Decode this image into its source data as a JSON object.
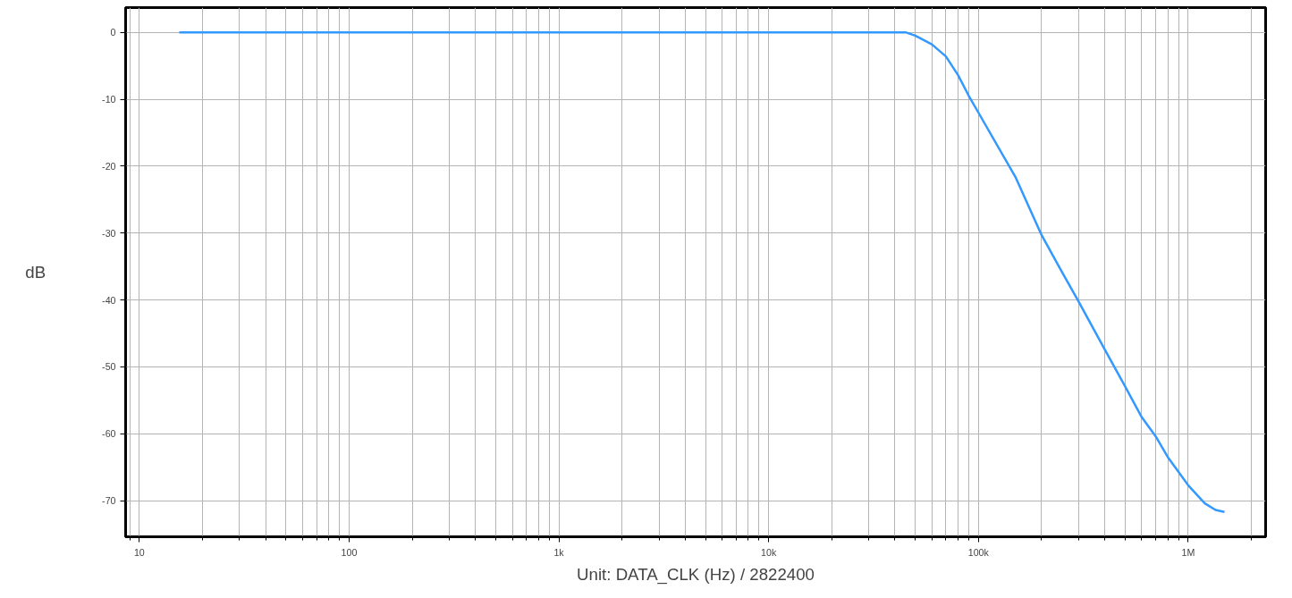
{
  "chart_data": {
    "type": "line",
    "xlabel": "Unit: DATA_CLK (Hz) / 2822400",
    "ylabel": "dB",
    "x": [
      15.5,
      100,
      1000,
      10000,
      30000,
      40000,
      45000,
      50000,
      60000,
      70000,
      80000,
      90000,
      100000,
      150000,
      200000,
      250000,
      300000,
      400000,
      500000,
      600000,
      700000,
      800000,
      900000,
      1000000,
      1200000,
      1350000,
      1490000
    ],
    "series": [
      {
        "color": "#3399ff",
        "values": [
          0,
          0,
          0,
          0,
          0,
          0,
          0,
          -0.5,
          -1.8,
          -3.6,
          -6.4,
          -9.5,
          -12,
          -21.6,
          -30.3,
          -35.8,
          -40.2,
          -47.4,
          -52.9,
          -57.5,
          -60.4,
          -63.5,
          -65.7,
          -67.7,
          -70.4,
          -71.4,
          -71.7
        ]
      }
    ],
    "log": "x",
    "xlim": [
      8.6,
      2340000
    ],
    "ylim": [
      -75.4,
      3.7
    ],
    "xticks": [
      10,
      100,
      {
        "value": 1000,
        "label": "1k"
      },
      {
        "value": 10000,
        "label": "10k"
      },
      {
        "value": 100000,
        "label": "100k"
      },
      {
        "value": 1000000,
        "label": "1M"
      }
    ],
    "yticks": [
      0,
      -10,
      -20,
      -30,
      -40,
      -50,
      -60,
      -70
    ],
    "grid": true,
    "marker": "none",
    "line_style": "solid"
  }
}
